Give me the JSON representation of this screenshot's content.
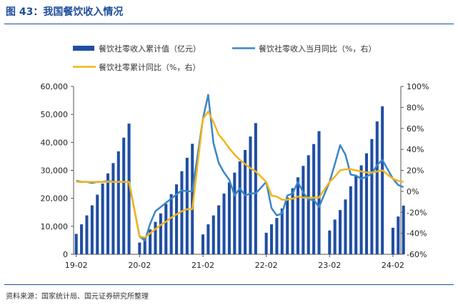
{
  "header": {
    "title": "图 43：我国餐饮收入情况"
  },
  "footer": {
    "source": "资料来源：国家统计局、国元证券研究所整理"
  },
  "colors": {
    "bar": "#1f4ea3",
    "line_yoy_month": "#3a86c8",
    "line_yoy_cum": "#f2b51c",
    "title": "#1f4e9a"
  },
  "chart_data": {
    "type": "bar",
    "title": "我国餐饮收入情况",
    "legend": [
      "餐饮社零收入累计值（亿元）",
      "餐饮社零收入当月同比（%，右）",
      "餐饮社零累计同比（%，右）"
    ],
    "left_axis": {
      "ylim": [
        0,
        60000
      ],
      "ticks": [
        "0",
        "10,000",
        "20,000",
        "30,000",
        "40,000",
        "50,000",
        "60,000"
      ]
    },
    "right_axis": {
      "ylim": [
        -60,
        100
      ],
      "ticks": [
        "-60%",
        "-40%",
        "-20%",
        "0%",
        "20%",
        "40%",
        "60%",
        "80%",
        "100%"
      ]
    },
    "x_tick_labels": [
      "19-02",
      "20-02",
      "21-02",
      "22-02",
      "23-02",
      "24-02"
    ],
    "periods": [
      "19-02",
      "19-03",
      "19-04",
      "19-05",
      "19-06",
      "19-07",
      "19-08",
      "19-09",
      "19-10",
      "19-11",
      "19-12",
      "20-02",
      "20-03",
      "20-04",
      "20-05",
      "20-06",
      "20-07",
      "20-08",
      "20-09",
      "20-10",
      "20-11",
      "20-12",
      "21-02",
      "21-03",
      "21-04",
      "21-05",
      "21-06",
      "21-07",
      "21-08",
      "21-09",
      "21-10",
      "21-11",
      "21-12",
      "22-02",
      "22-03",
      "22-04",
      "22-05",
      "22-06",
      "22-07",
      "22-08",
      "22-09",
      "22-10",
      "22-11",
      "22-12",
      "23-02",
      "23-03",
      "23-04",
      "23-05",
      "23-06",
      "23-07",
      "23-08",
      "23-09",
      "23-10",
      "23-11",
      "23-12",
      "24-02",
      "24-03",
      "24-04"
    ],
    "series": [
      {
        "name": "餐饮社零收入累计值（亿元）",
        "axis": "left",
        "kind": "bar",
        "values": [
          7300,
          10700,
          13900,
          17500,
          21300,
          25300,
          28900,
          32600,
          36800,
          41700,
          46700,
          4200,
          6000,
          8900,
          11600,
          14600,
          18000,
          21500,
          25000,
          29700,
          34500,
          39500,
          7100,
          10700,
          13900,
          17500,
          21700,
          25700,
          29200,
          33200,
          37300,
          42100,
          46900,
          7700,
          10700,
          13000,
          16400,
          20300,
          23600,
          27500,
          31600,
          35400,
          39400,
          44000,
          8500,
          12400,
          15800,
          19600,
          24300,
          28100,
          31800,
          36100,
          41200,
          47500,
          52900,
          9500,
          13500,
          17400
        ]
      },
      {
        "name": "餐饮社零收入当月同比（%，右）",
        "axis": "right",
        "kind": "line",
        "values": [
          10,
          9,
          9,
          8,
          9,
          9,
          10,
          9,
          9,
          9,
          9,
          -43,
          -47,
          -31,
          -19,
          -15,
          -11,
          -7,
          -3,
          1,
          0,
          0,
          69,
          92,
          46,
          27,
          18,
          11,
          -4,
          3,
          -4,
          -2,
          -2,
          9,
          -16,
          -23,
          -21,
          -4,
          -2,
          9,
          -1,
          -8,
          -8,
          -15,
          9,
          26,
          44,
          35,
          16,
          15,
          12,
          14,
          17,
          25,
          30,
          12,
          6,
          4
        ]
      },
      {
        "name": "餐饮社零累计同比（%，右）",
        "axis": "right",
        "kind": "line",
        "values": [
          9,
          9,
          9,
          9,
          9,
          9,
          9,
          9,
          9,
          9,
          9,
          -43,
          -44,
          -40,
          -36,
          -32,
          -29,
          -25,
          -22,
          -19,
          -17,
          -17,
          69,
          76,
          66,
          54,
          48,
          41,
          35,
          30,
          26,
          22,
          19,
          9,
          -4,
          -5,
          -8,
          -8,
          -7,
          -5,
          -6,
          -6,
          -6,
          -6,
          9,
          14,
          20,
          21,
          21,
          20,
          19,
          18,
          18,
          19,
          20,
          12,
          10,
          9
        ]
      }
    ]
  }
}
